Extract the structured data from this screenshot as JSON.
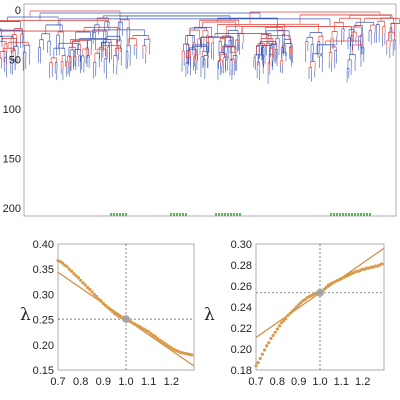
{
  "colors": {
    "tree_red": "#e0413b",
    "tree_blue": "#3b57b8",
    "tree_leaf": "#5cb85c",
    "fit_line": "#d4893b",
    "points": "#d99a4a",
    "crosshair": "#555555",
    "marker": "#a0a0a0"
  },
  "chart_data": [
    {
      "type": "tree",
      "yticks": [
        "0",
        "50",
        "100",
        "150",
        "200"
      ],
      "ylim": [
        0,
        205
      ],
      "legend": "none",
      "grid": false
    },
    {
      "type": "scatter",
      "ylabel": "λ",
      "xlim": [
        0.7,
        1.3
      ],
      "ylim": [
        0.15,
        0.4
      ],
      "xticks": [
        "0.7",
        "0.8",
        "0.9",
        "1.0",
        "1.1",
        "1.2"
      ],
      "yticks": [
        "0.15",
        "0.20",
        "0.25",
        "0.30",
        "0.35",
        "0.40"
      ],
      "crosshair": [
        1.0,
        0.251
      ],
      "fit": [
        [
          0.7,
          0.344
        ],
        [
          1.3,
          0.158
        ]
      ],
      "points": [
        [
          0.7,
          0.367
        ],
        [
          0.71,
          0.365
        ],
        [
          0.72,
          0.362
        ],
        [
          0.73,
          0.358
        ],
        [
          0.74,
          0.355
        ],
        [
          0.75,
          0.35
        ],
        [
          0.76,
          0.346
        ],
        [
          0.77,
          0.341
        ],
        [
          0.78,
          0.337
        ],
        [
          0.79,
          0.333
        ],
        [
          0.8,
          0.328
        ],
        [
          0.81,
          0.323
        ],
        [
          0.82,
          0.319
        ],
        [
          0.83,
          0.314
        ],
        [
          0.84,
          0.31
        ],
        [
          0.85,
          0.305
        ],
        [
          0.86,
          0.3
        ],
        [
          0.87,
          0.296
        ],
        [
          0.88,
          0.291
        ],
        [
          0.89,
          0.287
        ],
        [
          0.9,
          0.282
        ],
        [
          0.91,
          0.278
        ],
        [
          0.92,
          0.274
        ],
        [
          0.93,
          0.27
        ],
        [
          0.94,
          0.266
        ],
        [
          0.95,
          0.262
        ],
        [
          0.96,
          0.259
        ],
        [
          0.97,
          0.256
        ],
        [
          0.98,
          0.254
        ],
        [
          0.99,
          0.252
        ],
        [
          1.0,
          0.251
        ],
        [
          1.01,
          0.248
        ],
        [
          1.02,
          0.246
        ],
        [
          1.03,
          0.243
        ],
        [
          1.04,
          0.241
        ],
        [
          1.05,
          0.238
        ],
        [
          1.06,
          0.236
        ],
        [
          1.07,
          0.233
        ],
        [
          1.08,
          0.231
        ],
        [
          1.09,
          0.228
        ],
        [
          1.1,
          0.226
        ],
        [
          1.11,
          0.222
        ],
        [
          1.12,
          0.219
        ],
        [
          1.13,
          0.216
        ],
        [
          1.14,
          0.212
        ],
        [
          1.15,
          0.209
        ],
        [
          1.16,
          0.206
        ],
        [
          1.17,
          0.203
        ],
        [
          1.18,
          0.2
        ],
        [
          1.19,
          0.197
        ],
        [
          1.2,
          0.194
        ],
        [
          1.21,
          0.191
        ],
        [
          1.22,
          0.189
        ],
        [
          1.23,
          0.187
        ],
        [
          1.24,
          0.185
        ],
        [
          1.25,
          0.184
        ],
        [
          1.26,
          0.183
        ],
        [
          1.27,
          0.182
        ],
        [
          1.28,
          0.181
        ],
        [
          1.29,
          0.18
        ]
      ]
    },
    {
      "type": "scatter",
      "ylabel": "λ",
      "xlim": [
        0.7,
        1.3
      ],
      "ylim": [
        0.18,
        0.3
      ],
      "xticks": [
        "0.7",
        "0.8",
        "0.9",
        "1.0",
        "1.1",
        "1.2"
      ],
      "yticks": [
        "0.18",
        "0.20",
        "0.22",
        "0.24",
        "0.26",
        "0.28",
        "0.30"
      ],
      "crosshair": [
        1.0,
        0.2535
      ],
      "fit": [
        [
          0.7,
          0.211
        ],
        [
          1.3,
          0.296
        ]
      ],
      "points": [
        [
          0.7,
          0.184
        ],
        [
          0.71,
          0.187
        ],
        [
          0.72,
          0.191
        ],
        [
          0.73,
          0.195
        ],
        [
          0.74,
          0.199
        ],
        [
          0.75,
          0.203
        ],
        [
          0.76,
          0.206
        ],
        [
          0.77,
          0.21
        ],
        [
          0.78,
          0.213
        ],
        [
          0.79,
          0.216
        ],
        [
          0.8,
          0.219
        ],
        [
          0.81,
          0.222
        ],
        [
          0.82,
          0.225
        ],
        [
          0.83,
          0.227
        ],
        [
          0.84,
          0.229
        ],
        [
          0.85,
          0.232
        ],
        [
          0.86,
          0.234
        ],
        [
          0.87,
          0.236
        ],
        [
          0.88,
          0.238
        ],
        [
          0.89,
          0.24
        ],
        [
          0.9,
          0.242
        ],
        [
          0.91,
          0.244
        ],
        [
          0.92,
          0.246
        ],
        [
          0.93,
          0.247
        ],
        [
          0.94,
          0.249
        ],
        [
          0.95,
          0.25
        ],
        [
          0.96,
          0.251
        ],
        [
          0.97,
          0.252
        ],
        [
          0.98,
          0.253
        ],
        [
          0.99,
          0.253
        ],
        [
          1.0,
          0.2535
        ],
        [
          1.01,
          0.255
        ],
        [
          1.02,
          0.257
        ],
        [
          1.03,
          0.259
        ],
        [
          1.04,
          0.261
        ],
        [
          1.05,
          0.262
        ],
        [
          1.06,
          0.263
        ],
        [
          1.07,
          0.264
        ],
        [
          1.08,
          0.265
        ],
        [
          1.09,
          0.266
        ],
        [
          1.1,
          0.267
        ],
        [
          1.11,
          0.268
        ],
        [
          1.12,
          0.269
        ],
        [
          1.13,
          0.27
        ],
        [
          1.14,
          0.271
        ],
        [
          1.15,
          0.272
        ],
        [
          1.16,
          0.273
        ],
        [
          1.17,
          0.274
        ],
        [
          1.18,
          0.274
        ],
        [
          1.19,
          0.275
        ],
        [
          1.2,
          0.276
        ],
        [
          1.21,
          0.276
        ],
        [
          1.22,
          0.277
        ],
        [
          1.23,
          0.277
        ],
        [
          1.24,
          0.278
        ],
        [
          1.25,
          0.278
        ],
        [
          1.26,
          0.279
        ],
        [
          1.27,
          0.279
        ],
        [
          1.28,
          0.28
        ],
        [
          1.29,
          0.281
        ]
      ]
    }
  ]
}
